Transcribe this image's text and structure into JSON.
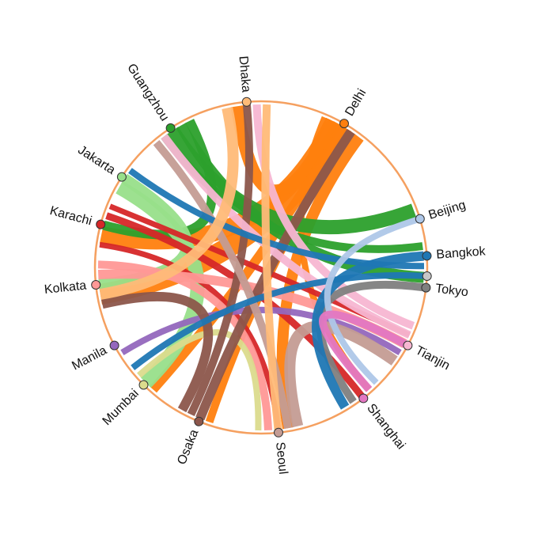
{
  "chart_data": {
    "type": "chord",
    "title": "",
    "nodes": [
      {
        "name": "Dhaka",
        "angle": -95,
        "color": "#ffbb78"
      },
      {
        "name": "Delhi",
        "angle": -60,
        "color": "#ff7f0e"
      },
      {
        "name": "Beijing",
        "angle": -17,
        "color": "#aec7e8"
      },
      {
        "name": "Bangkok",
        "angle": -4,
        "color": "#1f77b4"
      },
      {
        "name": "",
        "angle": 3,
        "color": "#c7c7c7"
      },
      {
        "name": "Tokyo",
        "angle": 7,
        "color": "#7f7f7f"
      },
      {
        "name": "Tianjin",
        "angle": 28,
        "color": "#f7b6d2"
      },
      {
        "name": "Shanghai",
        "angle": 52,
        "color": "#e377c2"
      },
      {
        "name": "Seoul",
        "angle": 84,
        "color": "#c49c94"
      },
      {
        "name": "Osaka",
        "angle": 112,
        "color": "#8c564b"
      },
      {
        "name": "Mumbai",
        "angle": 135,
        "color": "#dbdb8d"
      },
      {
        "name": "Manila",
        "angle": 152,
        "color": "#9467bd"
      },
      {
        "name": "Kolkata",
        "angle": 174,
        "color": "#ff9896"
      },
      {
        "name": "Karachi",
        "angle": 195,
        "color": "#d62728"
      },
      {
        "name": "Jakarta",
        "angle": 213,
        "color": "#98df8a"
      },
      {
        "name": "Guangzhou",
        "angle": 237,
        "color": "#2ca02c"
      }
    ],
    "links": [
      {
        "source": "Delhi",
        "target": "Karachi",
        "width": 22
      },
      {
        "source": "Delhi",
        "target": "Kolkata",
        "width": 26
      },
      {
        "source": "Delhi",
        "target": "Osaka",
        "width": 10
      },
      {
        "source": "Delhi",
        "target": "Seoul",
        "width": 14
      },
      {
        "source": "Delhi",
        "target": "Shanghai",
        "width": 8
      },
      {
        "source": "Delhi",
        "target": "Dhaka",
        "width": 16
      },
      {
        "source": "Delhi",
        "target": "Mumbai",
        "width": 12
      },
      {
        "source": "Guangzhou",
        "target": "Bangkok",
        "width": 10
      },
      {
        "source": "Guangzhou",
        "target": "Beijing",
        "width": 18
      },
      {
        "source": "Guangzhou",
        "target": "Tokyo",
        "width": 14
      },
      {
        "source": "Guangzhou",
        "target": "Karachi",
        "width": 12
      },
      {
        "source": "Jakarta",
        "target": "Mumbai",
        "width": 18
      },
      {
        "source": "Jakarta",
        "target": "Kolkata",
        "width": 14
      },
      {
        "source": "Karachi",
        "target": "Shanghai",
        "width": 9
      },
      {
        "source": "Karachi",
        "target": "Tianjin",
        "width": 7
      },
      {
        "source": "Karachi",
        "target": "Seoul",
        "width": 7
      },
      {
        "source": "Kolkata",
        "target": "Tianjin",
        "width": 12
      },
      {
        "source": "Kolkata",
        "target": "Seoul",
        "width": 10
      },
      {
        "source": "Manila",
        "target": "Tianjin",
        "width": 8
      },
      {
        "source": "Mumbai",
        "target": "Seoul",
        "width": 8
      },
      {
        "source": "Osaka",
        "target": "Delhi",
        "width": 12
      },
      {
        "source": "Osaka",
        "target": "Dhaka",
        "width": 10
      },
      {
        "source": "Osaka",
        "target": "Kolkata",
        "width": 12
      },
      {
        "source": "Seoul",
        "target": "Tianjin",
        "width": 14
      },
      {
        "source": "Seoul",
        "target": "Guangzhou",
        "width": 10
      },
      {
        "source": "Tianjin",
        "target": "Dhaka",
        "width": 10
      },
      {
        "source": "Tianjin",
        "target": "Guangzhou",
        "width": 10
      },
      {
        "source": "Tokyo",
        "target": "Shanghai",
        "width": 10
      },
      {
        "source": "Bangkok",
        "target": "Shanghai",
        "width": 12
      },
      {
        "source": "Bangkok",
        "target": "Jakarta",
        "width": 8
      },
      {
        "source": "Bangkok",
        "target": "Mumbai",
        "width": 8
      },
      {
        "source": "Beijing",
        "target": "Shanghai",
        "width": 8
      },
      {
        "source": "Dhaka",
        "target": "Seoul",
        "width": 10
      },
      {
        "source": "Dhaka",
        "target": "Kolkata",
        "width": 14
      },
      {
        "source": "Shanghai",
        "target": "Tianjin",
        "width": 10
      }
    ]
  }
}
